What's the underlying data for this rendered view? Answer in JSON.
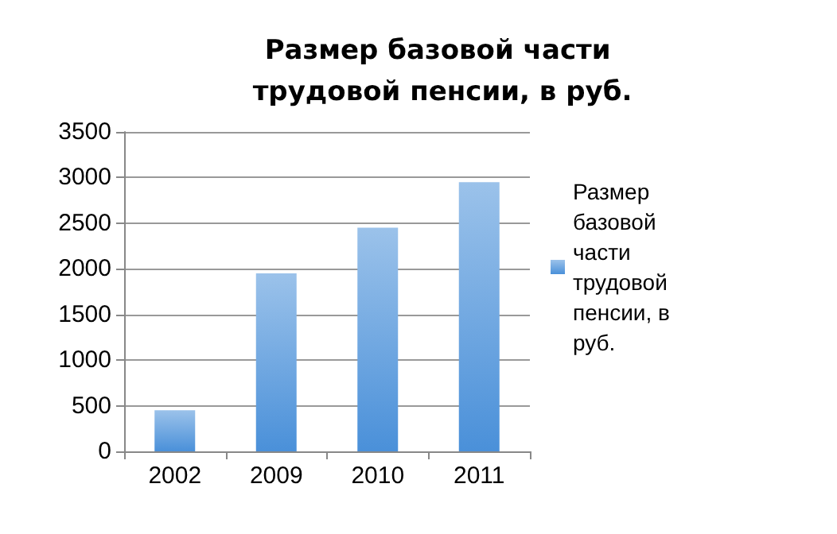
{
  "chart_data": {
    "type": "bar",
    "title": "Размер базовой части трудовой пенсии, в руб.",
    "categories": [
      "2002",
      "2009",
      "2010",
      "2011"
    ],
    "series": [
      {
        "name": "Размер базовой части трудовой пенсии, в руб.",
        "color": "#4a90d9",
        "values": [
          450,
          1950,
          2450,
          2950
        ]
      }
    ],
    "ylim": [
      0,
      3500
    ],
    "yticks": [
      0,
      500,
      1000,
      1500,
      2000,
      2500,
      3000,
      3500
    ],
    "grid": "y",
    "legend": "right"
  }
}
